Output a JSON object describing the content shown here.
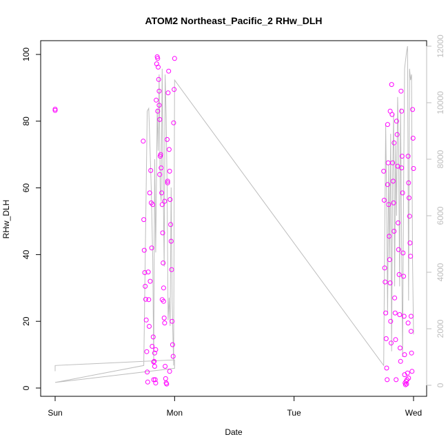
{
  "chart_data": {
    "type": "scatter",
    "title": "ATOM2 Northeast_Pacific_2 RHw_DLH",
    "xlabel": "Date",
    "ylabel": "RHw_DLH",
    "x_unit": "hours since Sun 00:00",
    "xlim": [
      0,
      75
    ],
    "ylim": [
      0,
      100
    ],
    "y2lim": [
      0,
      12000
    ],
    "x_ticks": [
      {
        "value": 0,
        "label": "Sun"
      },
      {
        "value": 24,
        "label": "Mon"
      },
      {
        "value": 48,
        "label": "Tue"
      },
      {
        "value": 72,
        "label": "Wed"
      }
    ],
    "y_ticks": [
      0,
      20,
      40,
      60,
      80,
      100
    ],
    "y2_ticks": [
      0,
      2000,
      4000,
      6000,
      8000,
      10000,
      12000
    ],
    "colors": {
      "points": "#ff00ff",
      "altitude_line": "#bdbdbd",
      "axis": "#000000",
      "right_axis": "#bdbdbd"
    },
    "grid": false,
    "legend": "none",
    "series": [
      {
        "type": "scatter",
        "axis": "left",
        "points": [
          [
            0.0,
            83.2
          ],
          [
            0.0,
            83.6
          ],
          [
            17.7,
            74.0
          ],
          [
            17.8,
            50.5
          ],
          [
            17.9,
            41.3
          ],
          [
            18.0,
            34.6
          ],
          [
            18.1,
            30.5
          ],
          [
            18.2,
            26.6
          ],
          [
            18.3,
            20.4
          ],
          [
            18.4,
            10.9
          ],
          [
            18.5,
            4.8
          ],
          [
            18.6,
            1.8
          ],
          [
            18.7,
            34.8
          ],
          [
            18.8,
            26.5
          ],
          [
            18.9,
            18.5
          ],
          [
            19.0,
            58.5
          ],
          [
            19.1,
            32.0
          ],
          [
            19.2,
            65.2
          ],
          [
            19.3,
            55.5
          ],
          [
            19.4,
            42.0
          ],
          [
            19.5,
            12.5
          ],
          [
            19.6,
            55.0
          ],
          [
            19.7,
            15.3
          ],
          [
            19.8,
            7.8
          ],
          [
            19.9,
            8.0
          ],
          [
            20.0,
            6.5
          ],
          [
            20.1,
            2.5
          ],
          [
            20.2,
            1.5
          ],
          [
            20.3,
            86.3
          ],
          [
            20.4,
            97.2
          ],
          [
            20.5,
            99.3
          ],
          [
            20.6,
            98.8
          ],
          [
            20.7,
            96.2
          ],
          [
            20.8,
            92.5
          ],
          [
            20.9,
            84.8
          ],
          [
            21.0,
            80.5
          ],
          [
            21.1,
            69.5
          ],
          [
            21.2,
            70.0
          ],
          [
            21.3,
            66.0
          ],
          [
            21.4,
            58.5
          ],
          [
            21.5,
            55.0
          ],
          [
            21.6,
            46.5
          ],
          [
            21.7,
            37.5
          ],
          [
            21.8,
            30.0
          ],
          [
            21.9,
            21.0
          ],
          [
            22.0,
            19.5
          ],
          [
            22.1,
            6.5
          ],
          [
            22.2,
            2.8
          ],
          [
            22.3,
            1.5
          ],
          [
            22.4,
            1.2
          ],
          [
            22.5,
            74.5
          ],
          [
            22.6,
            62.0
          ],
          [
            22.7,
            88.5
          ],
          [
            22.8,
            95.0
          ],
          [
            22.9,
            71.5
          ],
          [
            23.0,
            65.0
          ],
          [
            23.1,
            56.5
          ],
          [
            23.2,
            49.0
          ],
          [
            23.3,
            44.0
          ],
          [
            23.4,
            35.5
          ],
          [
            23.5,
            20.0
          ],
          [
            23.6,
            13.0
          ],
          [
            23.7,
            9.5
          ],
          [
            23.8,
            79.5
          ],
          [
            23.9,
            89.5
          ],
          [
            24.0,
            98.8
          ],
          [
            21.5,
            26.5
          ],
          [
            21.8,
            26.0
          ],
          [
            20.6,
            83.0
          ],
          [
            20.2,
            11.5
          ],
          [
            20.0,
            10.5
          ],
          [
            21.0,
            64.0
          ],
          [
            22.0,
            56.0
          ],
          [
            23.0,
            5.0
          ],
          [
            19.8,
            2.5
          ],
          [
            20.9,
            89.0
          ],
          [
            22.6,
            61.5
          ],
          [
            66.0,
            65.0
          ],
          [
            66.1,
            56.3
          ],
          [
            66.2,
            36.0
          ],
          [
            66.3,
            31.8
          ],
          [
            66.4,
            22.5
          ],
          [
            66.5,
            14.8
          ],
          [
            66.6,
            6.0
          ],
          [
            66.7,
            2.5
          ],
          [
            66.8,
            79.0
          ],
          [
            66.9,
            67.5
          ],
          [
            67.0,
            55.0
          ],
          [
            67.1,
            45.5
          ],
          [
            67.2,
            38.5
          ],
          [
            67.3,
            31.5
          ],
          [
            67.4,
            20.0
          ],
          [
            67.5,
            13.5
          ],
          [
            67.6,
            91.0
          ],
          [
            67.7,
            82.0
          ],
          [
            67.8,
            67.5
          ],
          [
            67.9,
            62.0
          ],
          [
            68.0,
            55.5
          ],
          [
            68.1,
            47.0
          ],
          [
            68.2,
            27.0
          ],
          [
            68.3,
            22.5
          ],
          [
            68.4,
            14.5
          ],
          [
            68.5,
            2.5
          ],
          [
            68.6,
            80.0
          ],
          [
            68.7,
            76.0
          ],
          [
            68.8,
            66.5
          ],
          [
            68.9,
            49.5
          ],
          [
            69.0,
            41.5
          ],
          [
            69.1,
            34.0
          ],
          [
            69.2,
            22.0
          ],
          [
            69.3,
            12.0
          ],
          [
            69.4,
            8.0
          ],
          [
            69.5,
            89.0
          ],
          [
            69.6,
            83.0
          ],
          [
            69.7,
            69.5
          ],
          [
            69.8,
            58.5
          ],
          [
            69.9,
            40.5
          ],
          [
            70.0,
            33.5
          ],
          [
            70.1,
            21.5
          ],
          [
            70.2,
            10.0
          ],
          [
            70.3,
            1.5
          ],
          [
            70.4,
            1.0
          ],
          [
            70.5,
            2.0
          ],
          [
            70.6,
            1.2
          ],
          [
            70.7,
            2.5
          ],
          [
            70.8,
            4.5
          ],
          [
            70.9,
            69.5
          ],
          [
            71.0,
            61.5
          ],
          [
            71.1,
            57.0
          ],
          [
            71.2,
            51.5
          ],
          [
            71.3,
            43.5
          ],
          [
            71.4,
            39.5
          ],
          [
            71.5,
            21.5
          ],
          [
            71.6,
            10.5
          ],
          [
            71.7,
            5.0
          ],
          [
            71.8,
            83.5
          ],
          [
            71.9,
            74.9
          ],
          [
            72.0,
            65.8
          ],
          [
            71.5,
            17.0
          ],
          [
            70.9,
            19.5
          ],
          [
            68.1,
            73.5
          ],
          [
            67.3,
            83.0
          ],
          [
            66.8,
            61.0
          ],
          [
            69.6,
            66.0
          ],
          [
            70.2,
            4.0
          ],
          [
            71.0,
            3.0
          ]
        ]
      },
      {
        "type": "line",
        "axis": "right",
        "points": [
          [
            0.0,
            500
          ],
          [
            0.0,
            700
          ],
          [
            24.0,
            900
          ],
          [
            24.0,
            600
          ],
          [
            0.0,
            100
          ],
          [
            17.8,
            700
          ],
          [
            18.5,
            9700
          ],
          [
            18.8,
            9800
          ],
          [
            19.1,
            8200
          ],
          [
            19.3,
            7000
          ],
          [
            19.6,
            4500
          ],
          [
            19.8,
            800
          ],
          [
            20.0,
            8000
          ],
          [
            20.2,
            4700
          ],
          [
            20.5,
            9800
          ],
          [
            20.7,
            8300
          ],
          [
            20.9,
            11000
          ],
          [
            21.1,
            7000
          ],
          [
            21.3,
            6500
          ],
          [
            21.5,
            11200
          ],
          [
            21.7,
            7300
          ],
          [
            21.9,
            4200
          ],
          [
            22.1,
            11000
          ],
          [
            22.3,
            9500
          ],
          [
            22.5,
            6900
          ],
          [
            22.7,
            2300
          ],
          [
            22.9,
            3100
          ],
          [
            23.1,
            2100
          ],
          [
            23.3,
            7000
          ],
          [
            23.5,
            3000
          ],
          [
            23.8,
            700
          ],
          [
            24.0,
            10800
          ],
          [
            66.0,
            700
          ],
          [
            66.2,
            5000
          ],
          [
            66.4,
            9200
          ],
          [
            66.6,
            6500
          ],
          [
            66.8,
            2500
          ],
          [
            67.0,
            7800
          ],
          [
            67.2,
            4500
          ],
          [
            67.4,
            8900
          ],
          [
            67.6,
            1200
          ],
          [
            67.8,
            7500
          ],
          [
            68.0,
            9600
          ],
          [
            68.2,
            3500
          ],
          [
            68.4,
            8500
          ],
          [
            68.6,
            6000
          ],
          [
            68.8,
            10200
          ],
          [
            69.0,
            8500
          ],
          [
            69.2,
            3500
          ],
          [
            69.4,
            9800
          ],
          [
            69.6,
            5000
          ],
          [
            69.8,
            1000
          ],
          [
            70.0,
            7000
          ],
          [
            70.2,
            11200
          ],
          [
            70.4,
            11500
          ],
          [
            70.6,
            11800
          ],
          [
            70.8,
            12000
          ],
          [
            71.0,
            3000
          ],
          [
            71.2,
            11200
          ],
          [
            71.4,
            10800
          ],
          [
            71.6,
            11000
          ],
          [
            71.8,
            4300
          ],
          [
            72.0,
            1800
          ]
        ]
      }
    ]
  }
}
